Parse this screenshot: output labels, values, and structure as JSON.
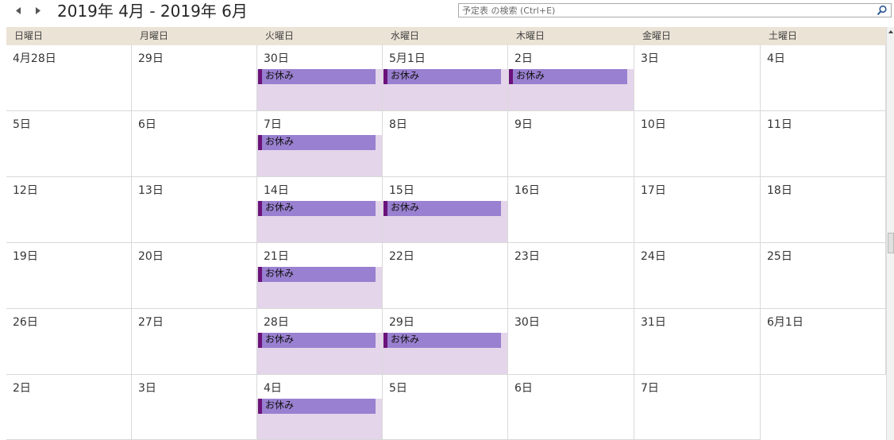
{
  "header": {
    "date_range": "2019年 4月 - 2019年 6月",
    "search_placeholder": "予定表 の検索 (Ctrl+E)"
  },
  "weekdays": [
    "日曜日",
    "月曜日",
    "火曜日",
    "水曜日",
    "木曜日",
    "金曜日",
    "土曜日"
  ],
  "weeks": [
    {
      "days": [
        "4月28日",
        "29日",
        "30日",
        "5月1日",
        "2日",
        "3日",
        "4日"
      ]
    },
    {
      "days": [
        "5日",
        "6日",
        "7日",
        "8日",
        "9日",
        "10日",
        "11日"
      ]
    },
    {
      "days": [
        "12日",
        "13日",
        "14日",
        "15日",
        "16日",
        "17日",
        "18日"
      ]
    },
    {
      "days": [
        "19日",
        "20日",
        "21日",
        "22日",
        "23日",
        "24日",
        "25日"
      ]
    },
    {
      "days": [
        "26日",
        "27日",
        "28日",
        "29日",
        "30日",
        "31日",
        "6月1日"
      ]
    },
    {
      "days": [
        "2日",
        "3日",
        "4日",
        "5日",
        "6日",
        "7日",
        ""
      ]
    }
  ],
  "events": [
    {
      "week": 0,
      "day": 2,
      "title": "お休み"
    },
    {
      "week": 0,
      "day": 3,
      "title": "お休み"
    },
    {
      "week": 0,
      "day": 4,
      "title": "お休み"
    },
    {
      "week": 1,
      "day": 2,
      "title": "お休み"
    },
    {
      "week": 2,
      "day": 2,
      "title": "お休み"
    },
    {
      "week": 2,
      "day": 3,
      "title": "お休み"
    },
    {
      "week": 3,
      "day": 2,
      "title": "お休み"
    },
    {
      "week": 4,
      "day": 2,
      "title": "お休み"
    },
    {
      "week": 4,
      "day": 3,
      "title": "お休み"
    },
    {
      "week": 5,
      "day": 2,
      "title": "お休み"
    }
  ],
  "colors": {
    "event_fill": "#9980d0",
    "event_marker": "#6a137a",
    "day_band": "#e4d5ea",
    "header_bg": "#ebe3d6"
  },
  "icons": {
    "prev": "triangle-left-icon",
    "next": "triangle-right-icon",
    "search": "magnifier-icon"
  }
}
